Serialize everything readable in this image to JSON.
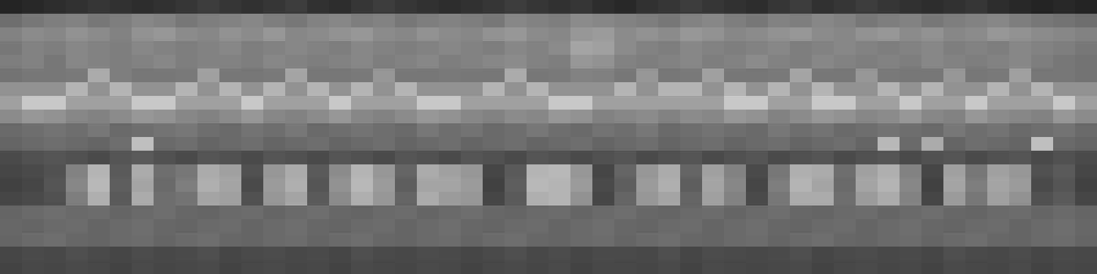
{
  "chart_data": {
    "type": "heatmap",
    "xlim": [
      0,
      50
    ],
    "ylim": [
      0,
      20
    ],
    "tick_labels": false,
    "color": "gray",
    "zlim": [
      0,
      255
    ],
    "cells": [
      [
        35,
        40,
        45,
        50,
        55,
        50,
        45,
        50,
        55,
        60,
        55,
        50,
        55,
        60,
        50,
        45,
        55,
        60,
        55,
        50,
        45,
        50,
        55,
        60,
        55,
        50,
        55,
        45,
        40,
        50,
        55,
        60,
        55,
        50,
        45,
        55,
        60,
        50,
        55,
        60,
        55,
        50,
        45,
        50,
        55,
        45,
        40,
        35,
        40,
        35
      ],
      [
        110,
        120,
        125,
        130,
        120,
        125,
        135,
        130,
        120,
        125,
        130,
        135,
        125,
        120,
        130,
        135,
        125,
        130,
        120,
        125,
        130,
        125,
        120,
        135,
        130,
        125,
        140,
        135,
        130,
        125,
        120,
        130,
        135,
        125,
        120,
        130,
        125,
        135,
        130,
        120,
        125,
        130,
        120,
        125,
        130,
        135,
        125,
        120,
        115,
        110
      ],
      [
        130,
        140,
        135,
        145,
        140,
        130,
        145,
        150,
        140,
        135,
        145,
        140,
        150,
        135,
        140,
        145,
        150,
        140,
        135,
        145,
        140,
        135,
        145,
        150,
        140,
        135,
        150,
        155,
        140,
        145,
        140,
        150,
        145,
        135,
        140,
        145,
        150,
        140,
        135,
        145,
        150,
        140,
        145,
        135,
        140,
        150,
        145,
        140,
        135,
        130
      ],
      [
        120,
        130,
        125,
        135,
        130,
        125,
        135,
        130,
        125,
        130,
        135,
        125,
        130,
        135,
        130,
        125,
        135,
        130,
        125,
        130,
        135,
        130,
        125,
        135,
        130,
        140,
        165,
        160,
        140,
        130,
        125,
        135,
        130,
        125,
        130,
        135,
        125,
        130,
        135,
        130,
        125,
        130,
        135,
        125,
        130,
        125,
        135,
        130,
        125,
        120
      ],
      [
        125,
        130,
        120,
        135,
        130,
        125,
        130,
        135,
        125,
        130,
        130,
        125,
        135,
        130,
        125,
        130,
        135,
        125,
        130,
        135,
        125,
        130,
        135,
        140,
        130,
        125,
        150,
        145,
        130,
        125,
        130,
        135,
        125,
        130,
        140,
        130,
        125,
        135,
        130,
        125,
        130,
        125,
        135,
        130,
        125,
        130,
        135,
        125,
        120,
        115
      ],
      [
        115,
        120,
        118,
        122,
        170,
        125,
        118,
        120,
        122,
        160,
        120,
        118,
        122,
        165,
        120,
        118,
        122,
        150,
        120,
        118,
        122,
        120,
        118,
        170,
        120,
        122,
        130,
        128,
        120,
        150,
        118,
        122,
        160,
        120,
        118,
        122,
        165,
        120,
        118,
        150,
        122,
        120,
        118,
        150,
        120,
        122,
        160,
        118,
        120,
        115
      ],
      [
        145,
        145,
        145,
        180,
        145,
        180,
        145,
        145,
        180,
        145,
        180,
        145,
        180,
        145,
        180,
        145,
        180,
        145,
        180,
        145,
        145,
        145,
        180,
        145,
        180,
        145,
        145,
        145,
        180,
        145,
        180,
        180,
        145,
        180,
        145,
        180,
        145,
        180,
        145,
        145,
        180,
        145,
        180,
        145,
        145,
        180,
        145,
        180,
        145,
        145
      ],
      [
        160,
        200,
        200,
        160,
        160,
        160,
        200,
        200,
        160,
        160,
        160,
        200,
        160,
        160,
        160,
        200,
        160,
        160,
        160,
        200,
        200,
        160,
        160,
        160,
        160,
        200,
        200,
        160,
        160,
        160,
        160,
        160,
        160,
        200,
        200,
        160,
        160,
        200,
        200,
        160,
        160,
        200,
        160,
        160,
        200,
        160,
        160,
        160,
        200,
        160
      ],
      [
        140,
        150,
        145,
        135,
        130,
        140,
        150,
        145,
        135,
        130,
        140,
        150,
        135,
        130,
        140,
        150,
        135,
        130,
        140,
        150,
        145,
        135,
        130,
        140,
        135,
        150,
        145,
        130,
        135,
        140,
        130,
        140,
        135,
        150,
        145,
        130,
        140,
        150,
        145,
        135,
        140,
        150,
        135,
        130,
        150,
        140,
        135,
        130,
        150,
        140
      ],
      [
        105,
        110,
        115,
        110,
        120,
        105,
        110,
        115,
        120,
        110,
        105,
        115,
        110,
        120,
        105,
        110,
        115,
        110,
        105,
        120,
        110,
        115,
        105,
        110,
        120,
        110,
        105,
        115,
        110,
        120,
        105,
        110,
        115,
        110,
        105,
        120,
        110,
        115,
        105,
        110,
        115,
        110,
        105,
        120,
        110,
        115,
        105,
        110,
        115,
        105
      ],
      [
        100,
        105,
        110,
        105,
        100,
        110,
        190,
        105,
        110,
        100,
        105,
        110,
        100,
        105,
        110,
        100,
        105,
        110,
        100,
        105,
        110,
        100,
        105,
        110,
        100,
        105,
        110,
        100,
        105,
        110,
        100,
        105,
        110,
        100,
        105,
        110,
        100,
        105,
        110,
        100,
        185,
        105,
        170,
        100,
        110,
        105,
        100,
        190,
        105,
        100
      ],
      [
        75,
        80,
        85,
        80,
        75,
        85,
        90,
        80,
        75,
        85,
        80,
        75,
        85,
        80,
        75,
        85,
        80,
        75,
        85,
        80,
        75,
        85,
        80,
        75,
        85,
        80,
        75,
        80,
        85,
        75,
        80,
        85,
        75,
        80,
        85,
        75,
        80,
        85,
        75,
        80,
        85,
        75,
        80,
        85,
        75,
        80,
        85,
        75,
        80,
        75
      ],
      [
        70,
        75,
        80,
        130,
        180,
        90,
        170,
        110,
        120,
        170,
        160,
        80,
        150,
        170,
        90,
        140,
        180,
        150,
        100,
        170,
        160,
        150,
        70,
        90,
        180,
        185,
        150,
        70,
        100,
        150,
        170,
        100,
        160,
        130,
        75,
        120,
        175,
        170,
        110,
        160,
        175,
        130,
        70,
        160,
        120,
        160,
        150,
        80,
        90,
        70
      ],
      [
        65,
        70,
        85,
        135,
        185,
        95,
        165,
        105,
        125,
        175,
        165,
        75,
        155,
        175,
        85,
        145,
        185,
        155,
        95,
        165,
        165,
        155,
        65,
        95,
        185,
        180,
        155,
        75,
        95,
        155,
        175,
        95,
        165,
        135,
        70,
        125,
        180,
        165,
        105,
        165,
        180,
        135,
        65,
        165,
        125,
        165,
        155,
        75,
        85,
        65
      ],
      [
        70,
        75,
        80,
        125,
        175,
        90,
        170,
        110,
        115,
        165,
        160,
        80,
        150,
        165,
        90,
        140,
        175,
        150,
        100,
        170,
        155,
        150,
        70,
        90,
        175,
        180,
        145,
        70,
        100,
        150,
        165,
        100,
        160,
        130,
        75,
        120,
        170,
        170,
        110,
        155,
        170,
        130,
        70,
        155,
        120,
        160,
        145,
        80,
        90,
        70
      ],
      [
        100,
        105,
        110,
        105,
        108,
        102,
        106,
        110,
        104,
        100,
        105,
        108,
        102,
        106,
        110,
        104,
        100,
        105,
        108,
        102,
        106,
        110,
        104,
        100,
        105,
        108,
        102,
        106,
        110,
        104,
        100,
        105,
        108,
        102,
        106,
        110,
        104,
        100,
        105,
        108,
        102,
        106,
        110,
        104,
        100,
        105,
        108,
        102,
        106,
        100
      ],
      [
        104,
        100,
        105,
        108,
        102,
        106,
        110,
        104,
        100,
        105,
        108,
        102,
        106,
        110,
        104,
        100,
        105,
        108,
        102,
        106,
        110,
        104,
        100,
        105,
        108,
        102,
        106,
        110,
        104,
        100,
        105,
        108,
        102,
        106,
        110,
        104,
        100,
        105,
        108,
        102,
        106,
        110,
        104,
        100,
        105,
        108,
        102,
        106,
        110,
        104
      ],
      [
        102,
        106,
        110,
        104,
        100,
        105,
        108,
        102,
        106,
        110,
        104,
        100,
        105,
        108,
        102,
        106,
        110,
        104,
        100,
        105,
        108,
        102,
        106,
        110,
        104,
        100,
        105,
        108,
        102,
        106,
        110,
        104,
        100,
        105,
        108,
        102,
        106,
        110,
        104,
        100,
        105,
        108,
        102,
        106,
        110,
        104,
        100,
        105,
        108,
        102
      ],
      [
        70,
        75,
        72,
        78,
        74,
        70,
        76,
        72,
        75,
        78,
        70,
        74,
        76,
        72,
        75,
        70,
        78,
        74,
        72,
        76,
        75,
        70,
        74,
        78,
        72,
        76,
        70,
        75,
        74,
        72,
        78,
        70,
        76,
        74,
        72,
        75,
        78,
        70,
        74,
        76,
        72,
        75,
        70,
        78,
        74,
        72,
        76,
        70,
        75,
        72
      ],
      [
        68,
        72,
        70,
        75,
        71,
        68,
        73,
        70,
        72,
        75,
        68,
        71,
        73,
        70,
        72,
        68,
        75,
        71,
        70,
        73,
        72,
        68,
        71,
        75,
        70,
        73,
        68,
        72,
        71,
        70,
        75,
        68,
        73,
        71,
        70,
        72,
        75,
        68,
        71,
        73,
        70,
        72,
        68,
        75,
        71,
        70,
        73,
        68,
        72,
        70
      ]
    ]
  }
}
